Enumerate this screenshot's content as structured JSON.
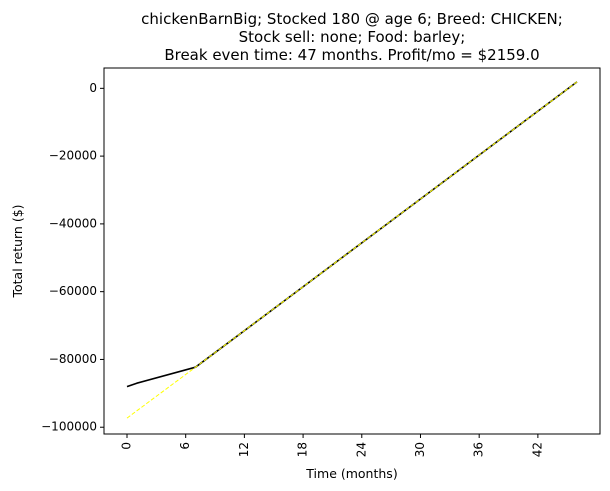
{
  "chart_data": {
    "type": "line",
    "title_lines": [
      "chickenBarnBig; Stocked 180 @ age 6; Breed: CHICKEN;",
      "Stock sell: none; Food: barley;",
      "Break even time: 47 months. Profit/mo = $2159.0"
    ],
    "xlabel": "Time (months)",
    "ylabel": "Total return ($)",
    "xlim": [
      -2.35,
      48.35
    ],
    "ylim": [
      -102000,
      6000
    ],
    "xticks": [
      0,
      6,
      12,
      18,
      24,
      30,
      36,
      42
    ],
    "yticks": [
      0,
      -20000,
      -40000,
      -60000,
      -80000,
      -100000
    ],
    "ytick_labels": [
      "0",
      "−20000",
      "−40000",
      "−60000",
      "−80000",
      "−100000"
    ],
    "series": [
      {
        "color": "#000000",
        "style": "solid",
        "x": [
          0,
          1,
          7,
          46
        ],
        "y": [
          -88000,
          -87000,
          -82300,
          1900
        ]
      },
      {
        "color": "#ffff00",
        "style": "dashed",
        "x": [
          0,
          7,
          46
        ],
        "y": [
          -97300,
          -82300,
          1900
        ]
      }
    ]
  }
}
